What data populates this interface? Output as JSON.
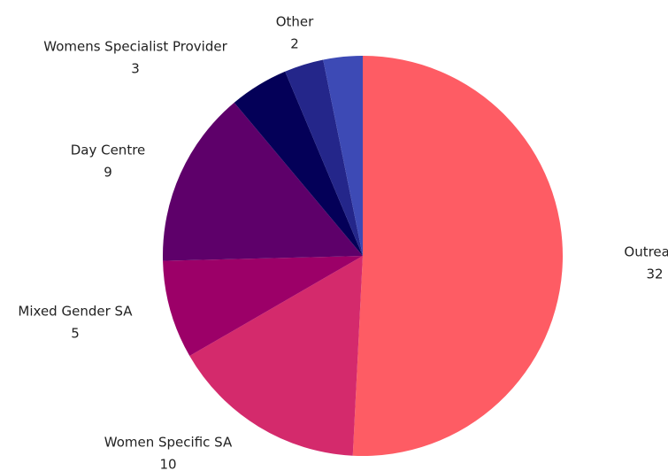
{
  "chart_data": {
    "type": "pie",
    "categories": [
      "Outreach",
      "Women Specific SA",
      "Mixed Gender SA",
      "Day Centre",
      "Womens Specialist Provider",
      null,
      "Other"
    ],
    "values": [
      32,
      10,
      5,
      9,
      3,
      2,
      2
    ],
    "colors": [
      "#fe5c64",
      "#d42a6c",
      "#9c0068",
      "#5e006a",
      "#040058",
      "#24268a",
      "#3d4ab5"
    ]
  }
}
